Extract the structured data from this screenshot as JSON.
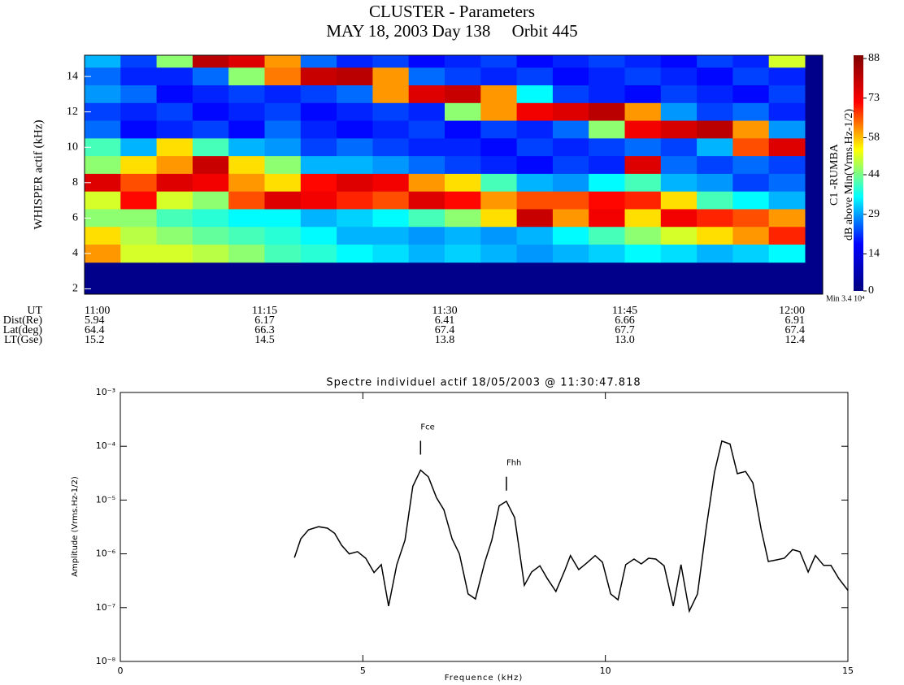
{
  "chart_data": [
    {
      "type": "heatmap",
      "title": "CLUSTER - Parameters",
      "subtitle": "MAY 18, 2003 Day 138     Orbit 445",
      "ylabel": "WHISPER actif (kHz)",
      "ylim": [
        1.7,
        15.2
      ],
      "yticks": [
        2,
        4,
        6,
        8,
        10,
        12,
        14
      ],
      "y": [
        15,
        14,
        13,
        12,
        11,
        10,
        9,
        8,
        7,
        6,
        5,
        4
      ],
      "z": [
        [
          30,
          22,
          45,
          80,
          75,
          60,
          25,
          20,
          22,
          18,
          20,
          22,
          18,
          20,
          22,
          20,
          18,
          22,
          20,
          50
        ],
        [
          25,
          20,
          20,
          25,
          45,
          62,
          78,
          80,
          60,
          25,
          22,
          20,
          22,
          18,
          20,
          22,
          20,
          18,
          22,
          20
        ],
        [
          28,
          25,
          18,
          20,
          22,
          20,
          22,
          25,
          60,
          75,
          78,
          60,
          35,
          22,
          20,
          18,
          22,
          20,
          18,
          22
        ],
        [
          22,
          20,
          22,
          18,
          20,
          22,
          18,
          20,
          22,
          20,
          45,
          60,
          72,
          75,
          80,
          60,
          28,
          22,
          25,
          20
        ],
        [
          25,
          18,
          20,
          22,
          18,
          25,
          20,
          18,
          20,
          22,
          18,
          22,
          20,
          25,
          45,
          72,
          76,
          80,
          60,
          28
        ],
        [
          40,
          30,
          55,
          40,
          30,
          28,
          22,
          25,
          22,
          20,
          20,
          18,
          22,
          20,
          22,
          25,
          22,
          30,
          65,
          75
        ],
        [
          45,
          55,
          60,
          78,
          55,
          45,
          30,
          30,
          28,
          25,
          22,
          20,
          18,
          22,
          20,
          75,
          25,
          22,
          25,
          22
        ],
        [
          75,
          65,
          75,
          72,
          60,
          55,
          70,
          75,
          72,
          60,
          55,
          40,
          30,
          28,
          35,
          40,
          30,
          28,
          22,
          25
        ],
        [
          50,
          70,
          50,
          45,
          65,
          75,
          72,
          68,
          65,
          75,
          70,
          60,
          65,
          65,
          70,
          68,
          55,
          40,
          35,
          30
        ],
        [
          45,
          45,
          40,
          38,
          35,
          35,
          30,
          32,
          35,
          40,
          45,
          55,
          78,
          60,
          72,
          55,
          72,
          68,
          65,
          60
        ],
        [
          55,
          48,
          45,
          42,
          40,
          38,
          35,
          30,
          30,
          28,
          30,
          28,
          30,
          35,
          40,
          45,
          50,
          55,
          60,
          68
        ],
        [
          60,
          50,
          50,
          48,
          45,
          40,
          38,
          35,
          33,
          30,
          32,
          30,
          28,
          30,
          32,
          35,
          33,
          30,
          32,
          35
        ]
      ],
      "colormap": [
        "#000080",
        "#0000ff",
        "#00ffff",
        "#ffff00",
        "#ff0000",
        "#800000"
      ],
      "colorbar": {
        "lim": [
          0,
          88
        ],
        "ticks": [
          0,
          14,
          29,
          44,
          58,
          73,
          88
        ],
        "label": "dB above Min(Vrms.Hz-1/2)",
        "note": "Min 3.4 10⁴"
      },
      "instrument": "C1 -RUMBA",
      "ephemeris": {
        "labels": [
          "UT",
          "Dist(Re)",
          "Lat(deg)",
          "LT(Gse)"
        ],
        "rows": [
          [
            "11:00",
            "11:15",
            "11:30",
            "11:45",
            "12:00"
          ],
          [
            "5.94",
            "6.17",
            "6.41",
            "6.66",
            "6.91"
          ],
          [
            "64.4",
            "66.3",
            "67.4",
            "67.7",
            "67.4"
          ],
          [
            "15.2",
            "14.5",
            "13.8",
            "13.0",
            "12.4"
          ]
        ]
      }
    },
    {
      "type": "line",
      "title": "Spectre individuel actif 18/05/2003 @ 11:30:47.818",
      "xlabel": "Frequence (kHz)",
      "ylabel": "Amplitude (Vrms.Hz-1/2)",
      "color": "#000000",
      "log_y": true,
      "xlim": [
        0,
        15
      ],
      "xticks": [
        0,
        5,
        10,
        15
      ],
      "ylim": [
        1e-08,
        0.001
      ],
      "yticks": [
        {
          "value": 1e-08,
          "label": "10⁻⁸"
        },
        {
          "value": 1e-07,
          "label": "10⁻⁷"
        },
        {
          "value": 1e-06,
          "label": "10⁻⁶"
        },
        {
          "value": 1e-05,
          "label": "10⁻⁵"
        },
        {
          "value": 0.0001,
          "label": "10⁻⁴"
        },
        {
          "value": 0.001,
          "label": "10⁻³"
        }
      ],
      "x": [
        3.59,
        3.72,
        3.88,
        4.09,
        4.27,
        4.42,
        4.56,
        4.72,
        4.89,
        5.06,
        5.23,
        5.38,
        5.53,
        5.7,
        5.87,
        6.03,
        6.19,
        6.35,
        6.52,
        6.67,
        6.84,
        6.99,
        7.17,
        7.32,
        7.51,
        7.66,
        7.81,
        7.96,
        8.13,
        8.33,
        8.48,
        8.65,
        8.8,
        8.98,
        9.17,
        9.28,
        9.45,
        9.62,
        9.79,
        9.94,
        10.11,
        10.26,
        10.42,
        10.59,
        10.74,
        10.89,
        11.04,
        11.21,
        11.4,
        11.56,
        11.73,
        11.9,
        12.08,
        12.25,
        12.4,
        12.57,
        12.72,
        12.89,
        13.04,
        13.21,
        13.36,
        13.52,
        13.69,
        13.86,
        14.01,
        14.18,
        14.33,
        14.5,
        14.65,
        14.81,
        15.0
      ],
      "values": [
        8.5e-07,
        1.9e-06,
        2.8e-06,
        3.2e-06,
        3e-06,
        2.4e-06,
        1.45e-06,
        1e-06,
        1.1e-06,
        8.3e-07,
        4.5e-07,
        6.3e-07,
        1.07e-07,
        6.3e-07,
        1.8e-06,
        1.8e-05,
        3.6e-05,
        2.7e-05,
        1.1e-05,
        6.6e-06,
        1.9e-06,
        1e-06,
        1.8e-07,
        1.45e-07,
        6.8e-07,
        1.8e-06,
        7.8e-06,
        9.5e-06,
        4.7e-06,
        2.6e-07,
        4.6e-07,
        6e-07,
        3.5e-07,
        2e-07,
        5.1e-07,
        9.3e-07,
        5.1e-07,
        6.8e-07,
        9.3e-07,
        7e-07,
        1.8e-07,
        1.4e-07,
        6.3e-07,
        8e-07,
        6.5e-07,
        8.3e-07,
        8e-07,
        6e-07,
        1.07e-07,
        6.3e-07,
        8.6e-08,
        1.8e-07,
        3.1e-06,
        3.3e-05,
        0.000125,
        0.00011,
        3.1e-05,
        3.4e-05,
        2.1e-05,
        2.9e-06,
        7.2e-07,
        7.7e-07,
        8.3e-07,
        1.2e-06,
        1.1e-06,
        4.6e-07,
        9.3e-07,
        6.1e-07,
        6.1e-07,
        3.5e-07,
        2.1e-07
      ],
      "annotations": [
        {
          "text": "Fce",
          "x": 6.19,
          "y": 7e-05
        },
        {
          "text": "Fhh",
          "x": 7.96,
          "y": 1.5e-05
        }
      ]
    }
  ]
}
